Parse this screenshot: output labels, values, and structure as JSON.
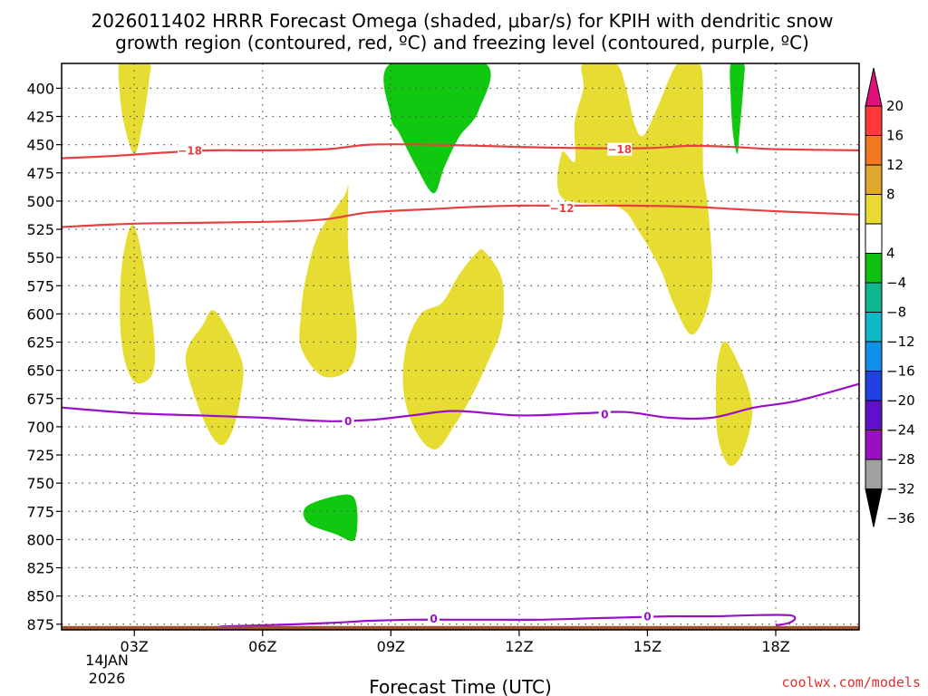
{
  "chart_data": {
    "type": "contour-shaded",
    "title_line1": "2026011402 HRRR Forecast Omega (shaded, μbar/s) for KPIH with dendritic snow",
    "title_line2": "growth region (contoured, red, ºC) and freezing level (contoured, purple, ºC)",
    "xlabel": "Forecast Time (UTC)",
    "x_range_hours": [
      1.3,
      19.95
    ],
    "x_ticks": [
      {
        "hour": 3,
        "label": "03Z"
      },
      {
        "hour": 6,
        "label": "06Z"
      },
      {
        "hour": 9,
        "label": "09Z"
      },
      {
        "hour": 12,
        "label": "12Z"
      },
      {
        "hour": 15,
        "label": "15Z"
      },
      {
        "hour": 18,
        "label": "18Z"
      }
    ],
    "date_label_line1": "14JAN",
    "date_label_line2": "2026",
    "y_range_hpa": [
      880,
      378
    ],
    "y_ticks": [
      400,
      425,
      450,
      475,
      500,
      525,
      550,
      575,
      600,
      625,
      650,
      675,
      700,
      725,
      750,
      775,
      800,
      825,
      850,
      875
    ],
    "colorbar_labels": [
      "20",
      "16",
      "12",
      "8",
      "4",
      "−4",
      "−8",
      "−12",
      "−16",
      "−20",
      "−24",
      "−28",
      "−32",
      "−36"
    ],
    "colorbar_bins": [
      {
        "range": [
          16,
          20
        ],
        "color": "#ff3a3a"
      },
      {
        "range": [
          12,
          16
        ],
        "color": "#f07820"
      },
      {
        "range": [
          8,
          12
        ],
        "color": "#e0a830"
      },
      {
        "range": [
          4,
          8
        ],
        "color": "#e8da30"
      },
      {
        "range": [
          -4,
          4
        ],
        "color": "#ffffff"
      },
      {
        "range": [
          -8,
          -4
        ],
        "color": "#10c010"
      },
      {
        "range": [
          -12,
          -8
        ],
        "color": "#10b890"
      },
      {
        "range": [
          -16,
          -12
        ],
        "color": "#10b8c8"
      },
      {
        "range": [
          -20,
          -16
        ],
        "color": "#1090e8"
      },
      {
        "range": [
          -24,
          -20
        ],
        "color": "#2040e0"
      },
      {
        "range": [
          -28,
          -24
        ],
        "color": "#6010c8"
      },
      {
        "range": [
          -32,
          -28
        ],
        "color": "#9810c0"
      },
      {
        "range": [
          -36,
          -32
        ],
        "color": "#a0a0a0"
      }
    ],
    "colorbar_top_color": "#e0107a",
    "colorbar_bottom_color": "#000000",
    "shaded_regions": [
      {
        "level": "yellow",
        "color": "#e6dc32",
        "pts": [
          [
            2.9,
            378
          ],
          [
            3.35,
            378
          ],
          [
            3.35,
            392
          ],
          [
            3.2,
            430
          ],
          [
            3.0,
            458
          ],
          [
            2.75,
            430
          ],
          [
            2.65,
            400
          ],
          [
            2.65,
            378
          ]
        ]
      },
      {
        "level": "yellow",
        "color": "#e6dc32",
        "pts": [
          [
            3.0,
            522
          ],
          [
            3.4,
            600
          ],
          [
            3.45,
            650
          ],
          [
            3.0,
            660
          ],
          [
            2.7,
            625
          ],
          [
            2.7,
            560
          ]
        ]
      },
      {
        "level": "yellow",
        "color": "#e6dc32",
        "pts": [
          [
            4.9,
            598
          ],
          [
            5.5,
            640
          ],
          [
            5.5,
            670
          ],
          [
            5.3,
            703
          ],
          [
            5.0,
            716
          ],
          [
            4.6,
            692
          ],
          [
            4.2,
            640
          ],
          [
            4.6,
            610
          ]
        ]
      },
      {
        "level": "yellow",
        "color": "#e6dc32",
        "pts": [
          [
            8.0,
            485
          ],
          [
            7.9,
            496
          ],
          [
            7.3,
            530
          ],
          [
            7.0,
            570
          ],
          [
            6.9,
            600
          ],
          [
            6.9,
            630
          ],
          [
            7.4,
            655
          ],
          [
            8.0,
            650
          ],
          [
            8.2,
            625
          ],
          [
            8.1,
            580
          ],
          [
            8.0,
            540
          ],
          [
            8.0,
            500
          ]
        ]
      },
      {
        "level": "yellow",
        "color": "#e6dc32",
        "pts": [
          [
            11.2,
            545
          ],
          [
            11.6,
            570
          ],
          [
            11.6,
            610
          ],
          [
            11.3,
            640
          ],
          [
            10.9,
            672
          ],
          [
            10.5,
            698
          ],
          [
            10.05,
            720
          ],
          [
            9.6,
            705
          ],
          [
            9.3,
            670
          ],
          [
            9.35,
            630
          ],
          [
            9.7,
            600
          ],
          [
            10.2,
            590
          ],
          [
            10.6,
            565
          ],
          [
            11.0,
            546
          ]
        ]
      },
      {
        "level": "yellow",
        "color": "#e6dc32",
        "pts": [
          [
            15.55,
            388
          ],
          [
            15.75,
            378
          ],
          [
            16.2,
            378
          ],
          [
            16.3,
            400
          ],
          [
            16.3,
            470
          ],
          [
            16.4,
            500
          ],
          [
            16.5,
            545
          ],
          [
            16.5,
            577
          ],
          [
            16.3,
            605
          ],
          [
            16.0,
            618
          ],
          [
            15.6,
            590
          ],
          [
            15.3,
            560
          ],
          [
            14.8,
            527
          ],
          [
            14.3,
            505
          ],
          [
            13.0,
            497
          ],
          [
            13.0,
            457
          ],
          [
            13.3,
            465
          ],
          [
            13.3,
            430
          ],
          [
            13.5,
            400
          ],
          [
            13.5,
            378
          ],
          [
            14.25,
            378
          ],
          [
            14.5,
            400
          ],
          [
            14.7,
            432
          ],
          [
            14.9,
            442
          ],
          [
            15.2,
            420
          ]
        ]
      },
      {
        "level": "yellow",
        "color": "#e6dc32",
        "pts": [
          [
            16.85,
            625
          ],
          [
            17.3,
            660
          ],
          [
            17.45,
            690
          ],
          [
            17.2,
            725
          ],
          [
            16.9,
            734
          ],
          [
            16.65,
            710
          ],
          [
            16.6,
            672
          ],
          [
            16.65,
            640
          ]
        ]
      },
      {
        "level": "green",
        "color": "#10c810",
        "pts": [
          [
            9.0,
            378
          ],
          [
            11.2,
            378
          ],
          [
            11.05,
            420
          ],
          [
            10.6,
            443
          ],
          [
            10.25,
            470
          ],
          [
            10.0,
            493
          ],
          [
            9.6,
            470
          ],
          [
            9.2,
            440
          ],
          [
            9.0,
            425
          ]
        ]
      },
      {
        "level": "green",
        "color": "#10c810",
        "pts": [
          [
            16.95,
            378
          ],
          [
            17.25,
            378
          ],
          [
            17.25,
            395
          ],
          [
            17.15,
            440
          ],
          [
            17.1,
            458
          ],
          [
            17.0,
            440
          ],
          [
            16.95,
            410
          ]
        ]
      },
      {
        "level": "green",
        "color": "#10c810",
        "pts": [
          [
            7.05,
            770
          ],
          [
            7.95,
            760
          ],
          [
            8.2,
            770
          ],
          [
            8.15,
            800
          ],
          [
            7.7,
            795
          ],
          [
            7.05,
            785
          ]
        ]
      }
    ],
    "terrain": {
      "color": "#a0522d",
      "top_hpa": 875
    },
    "contours": [
      {
        "label": "−18",
        "color": "#e84040",
        "label_hour": 4.3,
        "label_hpa": 455,
        "pts": [
          [
            1.3,
            462
          ],
          [
            2.5,
            460
          ],
          [
            3.7,
            457
          ],
          [
            4.8,
            455
          ],
          [
            6.0,
            455
          ],
          [
            7.5,
            454
          ],
          [
            8.5,
            450
          ],
          [
            10.0,
            450
          ],
          [
            12.0,
            452
          ],
          [
            13.5,
            453
          ],
          [
            15.0,
            453
          ],
          [
            16.0,
            451
          ],
          [
            17.0,
            452
          ],
          [
            18.0,
            454
          ],
          [
            19.95,
            455
          ]
        ]
      },
      {
        "label": "−12",
        "color": "#e84040",
        "label_hour": 13.0,
        "label_hpa": 506,
        "pts": [
          [
            1.3,
            523
          ],
          [
            3.0,
            520
          ],
          [
            5.0,
            519
          ],
          [
            6.5,
            518
          ],
          [
            7.5,
            516
          ],
          [
            8.5,
            510
          ],
          [
            10.0,
            507
          ],
          [
            11.0,
            505
          ],
          [
            12.0,
            504
          ],
          [
            13.0,
            504
          ],
          [
            14.5,
            504
          ],
          [
            16.0,
            505
          ],
          [
            17.0,
            507
          ],
          [
            18.0,
            509
          ],
          [
            19.95,
            512
          ]
        ]
      },
      {
        "label": "0",
        "color": "#9a10c8",
        "label_hour": 8.0,
        "label_hpa": 695,
        "pts": [
          [
            1.3,
            683
          ],
          [
            3.0,
            688
          ],
          [
            4.5,
            690
          ],
          [
            6.0,
            692
          ],
          [
            7.5,
            695
          ],
          [
            8.5,
            694
          ],
          [
            9.5,
            690
          ],
          [
            10.5,
            686
          ],
          [
            12.0,
            690
          ],
          [
            13.5,
            688
          ],
          [
            14.5,
            687
          ],
          [
            15.5,
            692
          ],
          [
            16.5,
            692
          ],
          [
            17.5,
            683
          ],
          [
            18.5,
            677
          ],
          [
            19.95,
            662
          ]
        ]
      },
      {
        "label": "0",
        "color": "#9a10c8",
        "label_hour": 10.0,
        "label_hpa": 870,
        "pts": [
          [
            5.0,
            877
          ],
          [
            6.0,
            876
          ],
          [
            7.5,
            874
          ],
          [
            8.5,
            872
          ],
          [
            9.5,
            871
          ],
          [
            10.5,
            871
          ],
          [
            11.5,
            871
          ],
          [
            12.5,
            871
          ],
          [
            13.5,
            870
          ],
          [
            14.5,
            869
          ],
          [
            15.5,
            868
          ],
          [
            16.5,
            868
          ],
          [
            17.5,
            867
          ],
          [
            18.3,
            867
          ],
          [
            18.45,
            870
          ],
          [
            18.3,
            874
          ],
          [
            18.0,
            876
          ]
        ]
      }
    ],
    "extra_contour_labels": [
      {
        "text": "−18",
        "color": "#e84040",
        "hour": 14.35,
        "hpa": 454
      },
      {
        "text": "0",
        "color": "#9a10c8",
        "hour": 14.0,
        "hpa": 689
      },
      {
        "text": "0",
        "color": "#9a10c8",
        "hour": 15.0,
        "hpa": 868
      }
    ]
  },
  "credit": "coolwx.com/models"
}
